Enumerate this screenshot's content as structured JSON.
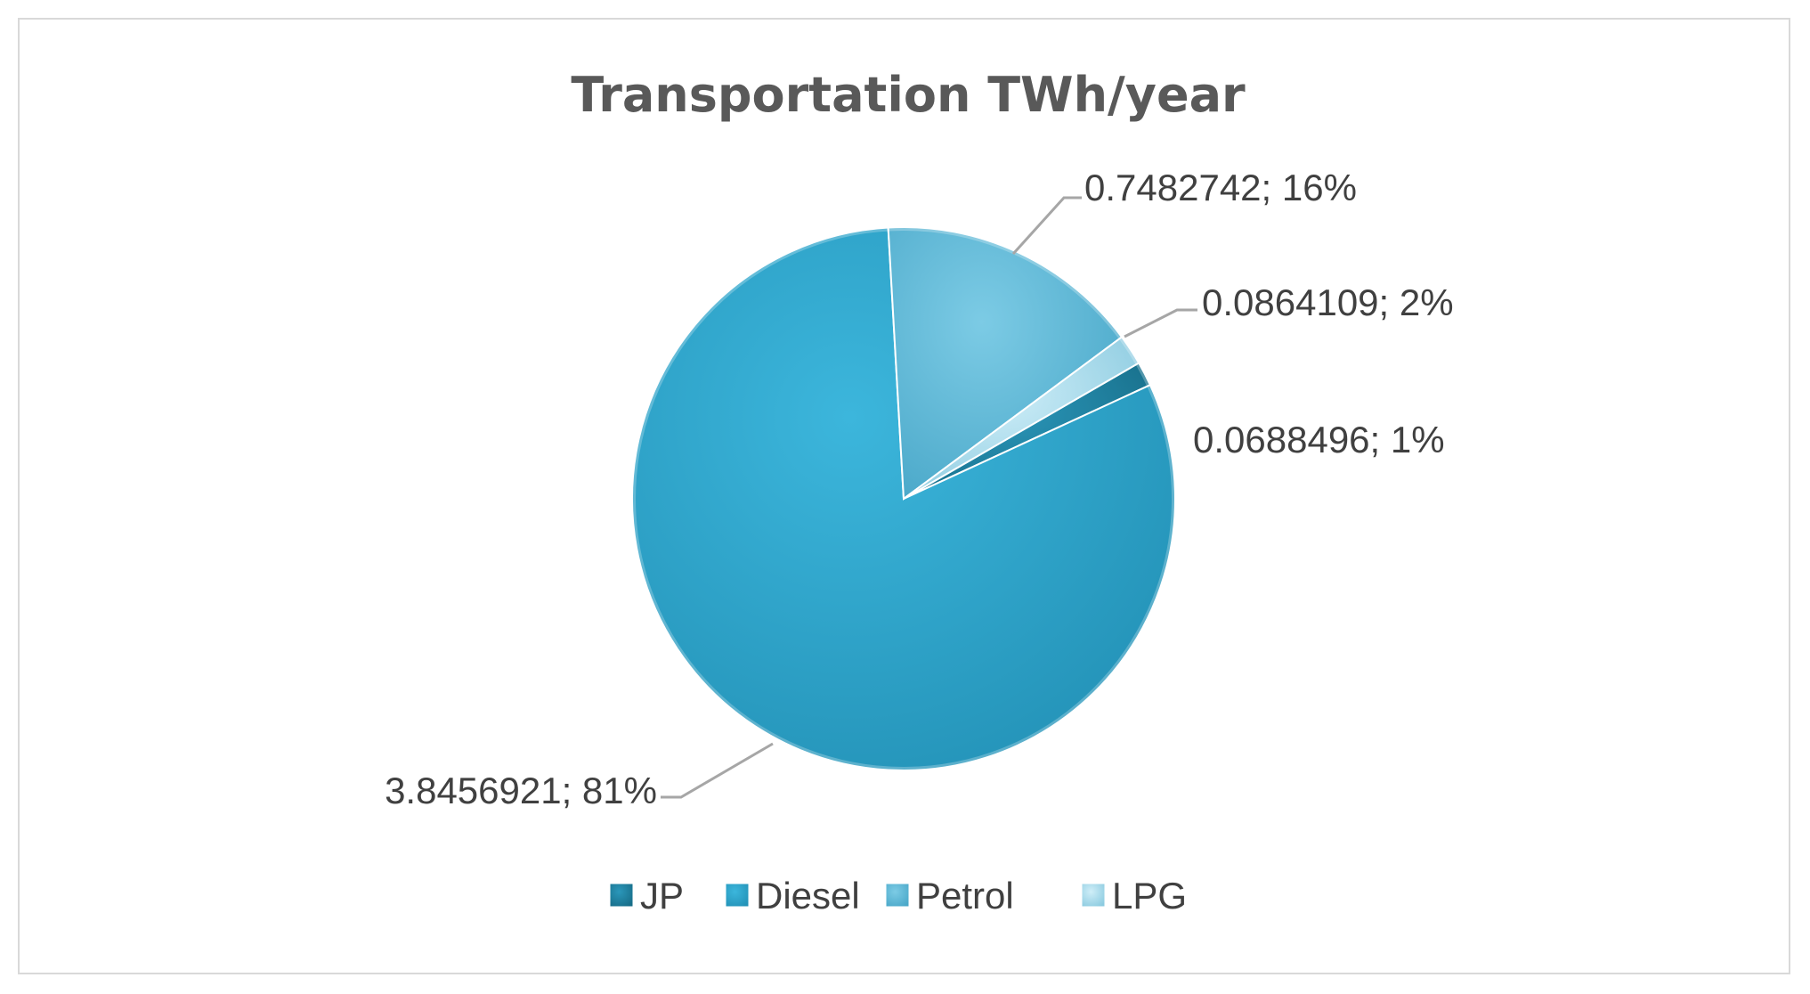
{
  "chart_data": {
    "type": "pie",
    "title": "Transportation TWh/year",
    "categories": [
      "JP",
      "Diesel",
      "Petrol",
      "LPG"
    ],
    "values": [
      0.0688496,
      3.8456921,
      0.7482742,
      0.0864109
    ],
    "percent_labels": [
      "1%",
      "81%",
      "16%",
      "2%"
    ],
    "data_labels": [
      "0.0688496; 1%",
      "3.8456921; 81%",
      "0.7482742; 16%",
      "0.0864109; 2%"
    ],
    "legend_position": "bottom",
    "colors": [
      "#1f7f9c",
      "#2fa7cc",
      "#5fbad8",
      "#a9d9ea"
    ]
  }
}
